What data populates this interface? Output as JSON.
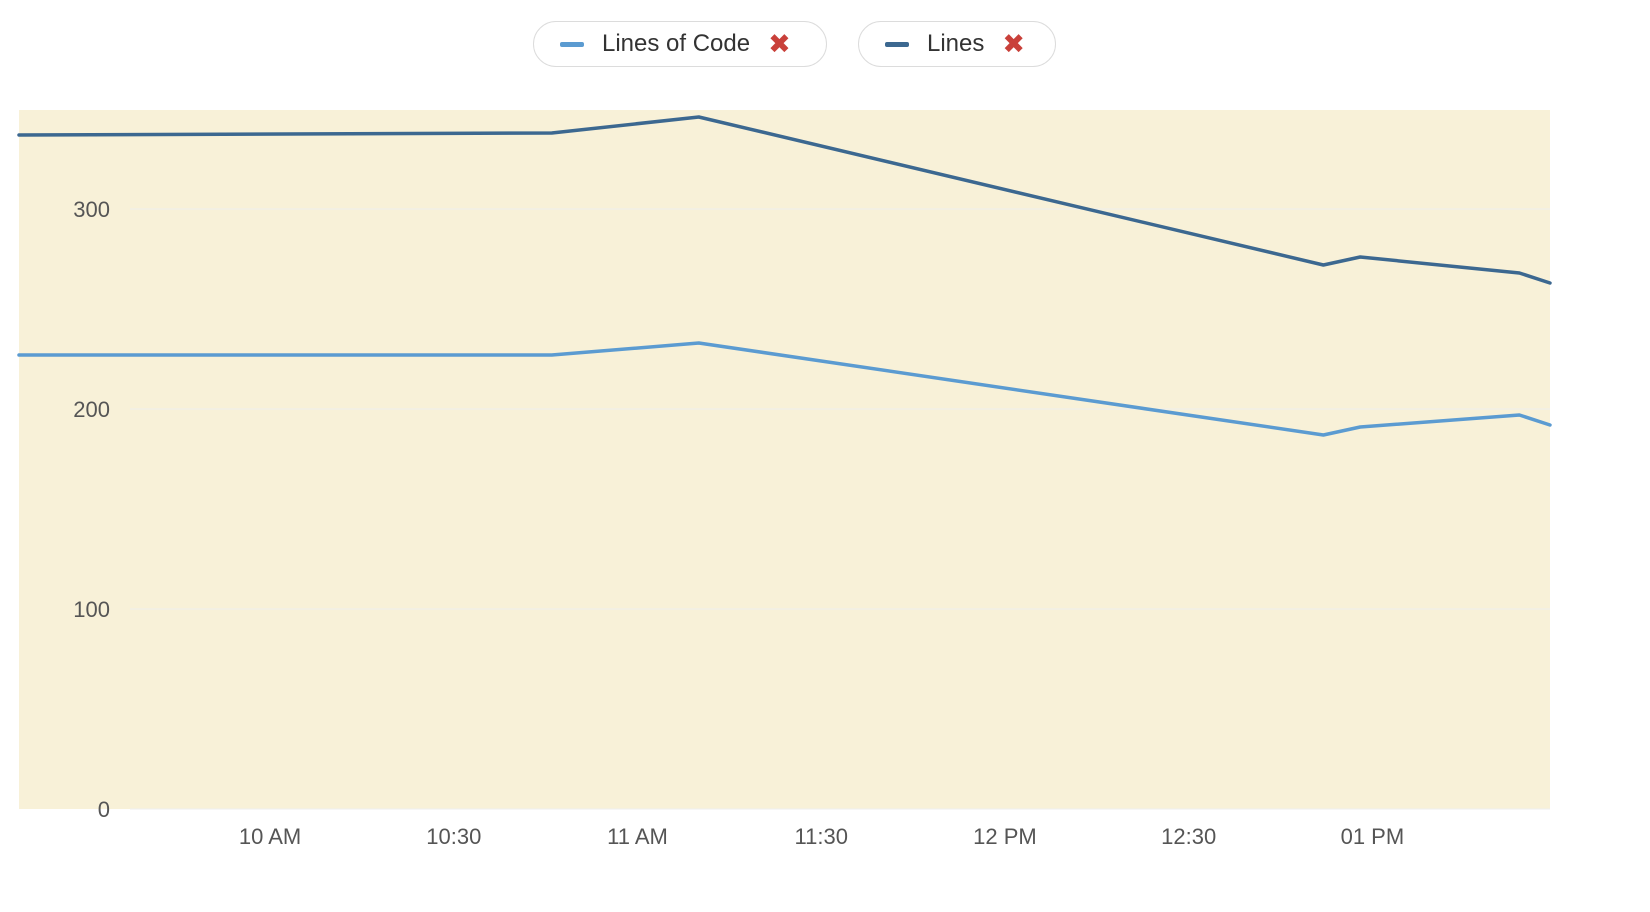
{
  "legend": {
    "items": [
      {
        "label": "Lines of Code",
        "color": "#5b9bd1",
        "remove_icon": "✖"
      },
      {
        "label": "Lines",
        "color": "#3c6890",
        "remove_icon": "✖"
      }
    ]
  },
  "colors": {
    "plot_background": "#f8f1d8",
    "gridline": "#eeeeee",
    "axis_text": "#555555"
  },
  "chart_data": {
    "type": "line",
    "title": "",
    "xlabel": "",
    "ylabel": "",
    "ylim": [
      0,
      350
    ],
    "y_ticks": [
      0,
      100,
      200,
      300
    ],
    "x_ticks": [
      "10 AM",
      "10:30",
      "11 AM",
      "11:30",
      "12 PM",
      "12:30",
      "01 PM"
    ],
    "x_tick_times": [
      "10:00",
      "10:30",
      "11:00",
      "11:30",
      "12:00",
      "12:30",
      "13:00"
    ],
    "x_range": [
      "09:19",
      "13:29"
    ],
    "grid": true,
    "legend_position": "top-center",
    "x": [
      "09:19",
      "10:46",
      "11:10",
      "12:52",
      "12:58",
      "13:24",
      "13:29"
    ],
    "series": [
      {
        "name": "Lines of Code",
        "color": "#5b9bd1",
        "values": [
          227,
          227,
          233,
          187,
          191,
          197,
          192
        ]
      },
      {
        "name": "Lines",
        "color": "#3c6890",
        "values": [
          337,
          338,
          346,
          272,
          276,
          268,
          263
        ]
      }
    ]
  }
}
